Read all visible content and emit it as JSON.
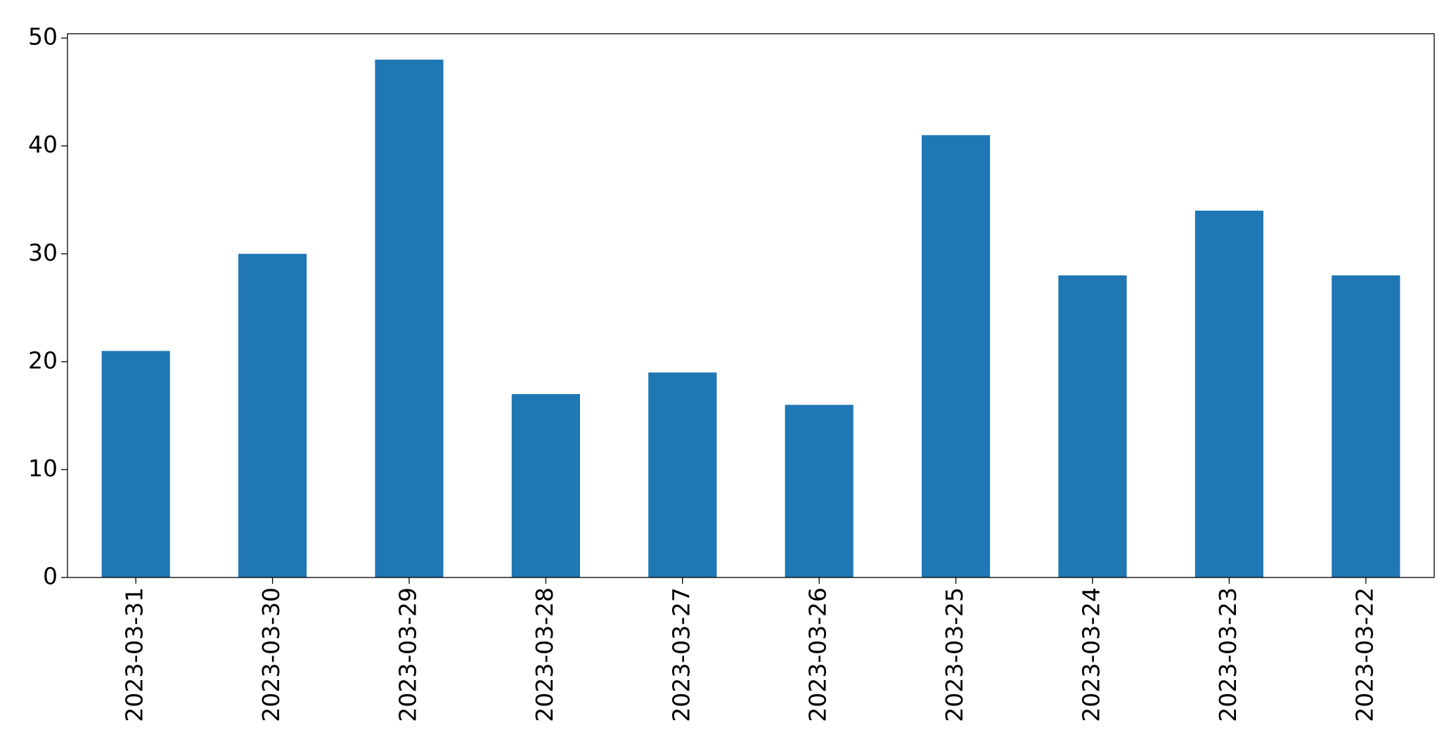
{
  "chart_data": {
    "type": "bar",
    "categories": [
      "2023-03-31",
      "2023-03-30",
      "2023-03-29",
      "2023-03-28",
      "2023-03-27",
      "2023-03-26",
      "2023-03-25",
      "2023-03-24",
      "2023-03-23",
      "2023-03-22"
    ],
    "values": [
      21,
      30,
      48,
      17,
      19,
      16,
      41,
      28,
      34,
      28
    ],
    "color": "#1f77b4",
    "ylim": [
      0,
      50.4
    ],
    "yticks": [
      0,
      10,
      20,
      30,
      40,
      50
    ],
    "grid": false
  }
}
